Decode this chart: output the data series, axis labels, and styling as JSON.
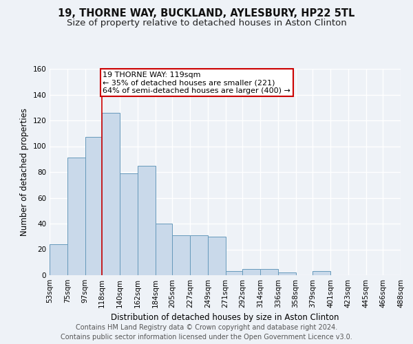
{
  "title": "19, THORNE WAY, BUCKLAND, AYLESBURY, HP22 5TL",
  "subtitle": "Size of property relative to detached houses in Aston Clinton",
  "xlabel": "Distribution of detached houses by size in Aston Clinton",
  "ylabel": "Number of detached properties",
  "footer_line1": "Contains HM Land Registry data © Crown copyright and database right 2024.",
  "footer_line2": "Contains public sector information licensed under the Open Government Licence v3.0.",
  "bar_edges": [
    53,
    75,
    97,
    118,
    140,
    162,
    184,
    205,
    227,
    249,
    271,
    292,
    314,
    336,
    358,
    379,
    401,
    423,
    445,
    466,
    488
  ],
  "bar_heights": [
    24,
    91,
    107,
    126,
    79,
    85,
    40,
    31,
    31,
    30,
    3,
    5,
    5,
    2,
    0,
    3,
    0,
    0,
    0,
    0
  ],
  "bar_color": "#c9d9ea",
  "bar_edge_color": "#6699bb",
  "vline_x": 118,
  "vline_color": "#cc0000",
  "annotation_text": "19 THORNE WAY: 119sqm\n← 35% of detached houses are smaller (221)\n64% of semi-detached houses are larger (400) →",
  "annotation_box_color": "#cc0000",
  "ylim": [
    0,
    160
  ],
  "yticks": [
    0,
    20,
    40,
    60,
    80,
    100,
    120,
    140,
    160
  ],
  "background_color": "#eef2f7",
  "grid_color": "#ffffff",
  "title_fontsize": 10.5,
  "subtitle_fontsize": 9.5,
  "xlabel_fontsize": 8.5,
  "ylabel_fontsize": 8.5,
  "tick_fontsize": 7.5,
  "footer_fontsize": 7.0,
  "annot_fontsize": 8.0
}
